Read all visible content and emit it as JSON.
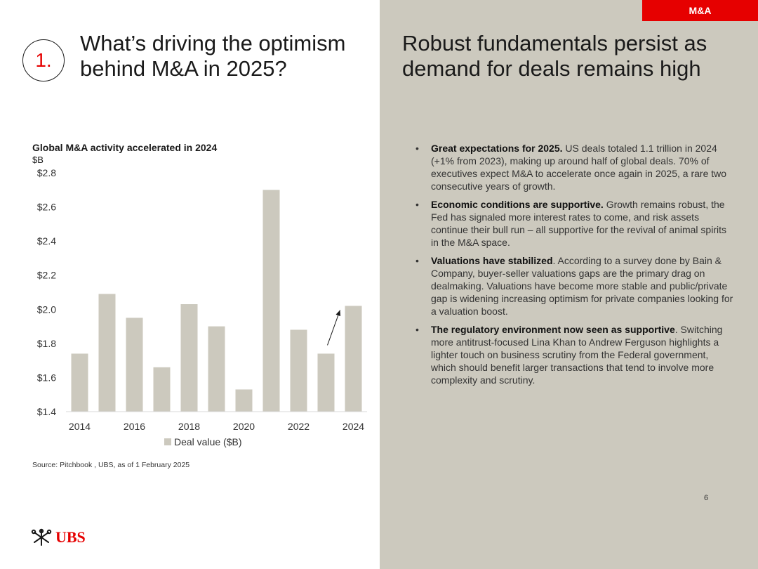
{
  "header": {
    "tag": "M&A",
    "section_number": "1.",
    "left_title": "What’s driving the optimism behind M&A in 2025?",
    "right_title": "Robust fundamentals persist as demand for deals remains high"
  },
  "chart": {
    "title": "Global M&A activity accelerated in 2024",
    "unit": "$B",
    "source": "Source: Pitchbook , UBS, as of 1 February 2025"
  },
  "chart_data": {
    "type": "bar",
    "title": "Global M&A activity accelerated in 2024",
    "ylabel": "$B",
    "x": [
      2014,
      2015,
      2016,
      2017,
      2018,
      2019,
      2020,
      2021,
      2022,
      2023,
      2024
    ],
    "x_tick_labels": [
      "2014",
      "2016",
      "2018",
      "2020",
      "2022",
      "2024"
    ],
    "series": [
      {
        "name": "Deal value ($B)",
        "values": [
          1.74,
          2.09,
          1.95,
          1.66,
          2.03,
          1.9,
          1.53,
          2.7,
          1.88,
          1.74,
          2.02
        ]
      }
    ],
    "y_tick_labels": [
      "$1.4",
      "$1.6",
      "$1.8",
      "$2.0",
      "$2.2",
      "$2.4",
      "$2.6",
      "$2.8"
    ],
    "y_ticks": [
      1.4,
      1.6,
      1.8,
      2.0,
      2.2,
      2.4,
      2.6,
      2.8
    ],
    "ylim": [
      1.4,
      2.8
    ],
    "legend": "bottom",
    "grid": false,
    "bar_color": "#ccc9be",
    "annotation": "upward arrow between 2023 and 2024"
  },
  "bullets": [
    {
      "bold": "Great expectations for 2025.",
      "text": " US deals totaled 1.1 trillion in 2024 (+1% from 2023), making up around half of global deals. 70% of executives expect M&A to accelerate once again in 2025, a rare two consecutive years of growth."
    },
    {
      "bold": "Economic conditions are supportive.",
      "text": " Growth remains robust, the Fed has signaled more interest rates to come, and risk assets continue their bull run – all supportive for the revival of animal spirits in the M&A space."
    },
    {
      "bold": "Valuations have stabilized",
      "text": ". According to a survey done by Bain & Company, buyer-seller valuations gaps are the primary drag on dealmaking.  Valuations have become more stable and public/private gap is widening increasing optimism for private companies looking for a valuation boost."
    },
    {
      "bold": "The regulatory environment now seen as supportive",
      "text": ". Switching more antitrust-focused Lina Khan to Andrew Ferguson highlights a lighter touch on business scrutiny from the Federal government, which should benefit larger transactions that tend to involve more complexity and scrutiny."
    }
  ],
  "footer": {
    "page_number": "6",
    "logo_text": "UBS"
  },
  "colors": {
    "accent": "#e60000",
    "panel": "#ccc9be",
    "bar": "#ccc9be"
  }
}
